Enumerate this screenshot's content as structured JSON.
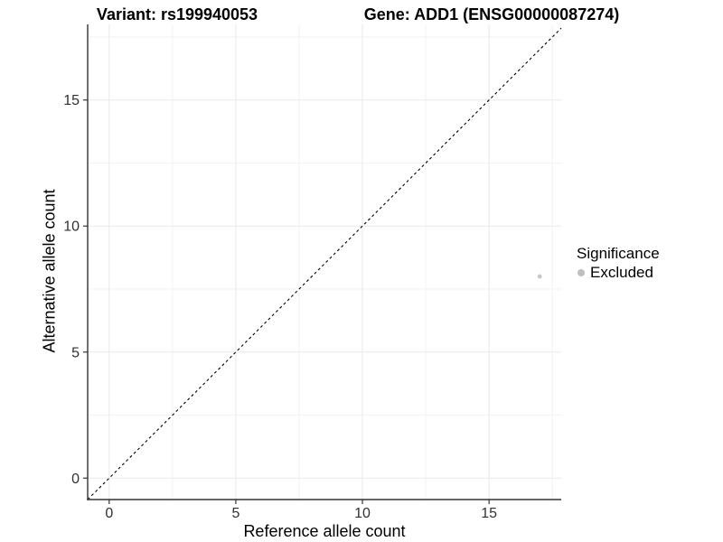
{
  "chart_data": {
    "type": "scatter",
    "title_left": "Variant: rs199940053",
    "title_right": "Gene: ADD1 (ENSG00000087274)",
    "xlabel": "Reference allele count",
    "ylabel": "Alternative allele count",
    "xlim": [
      -0.85,
      17.85
    ],
    "ylim": [
      -0.85,
      18.0
    ],
    "x_ticks": [
      0,
      5,
      10,
      15
    ],
    "y_ticks": [
      0,
      5,
      10,
      15
    ],
    "minor_grid_step": 2.5,
    "grid": true,
    "points": [
      {
        "x": 17,
        "y": 8,
        "series": "Excluded"
      }
    ],
    "reference_line": {
      "kind": "identity y=x",
      "style": "dashed",
      "color": "#000000"
    },
    "legend": {
      "title": "Significance",
      "position": "right",
      "items": [
        {
          "label": "Excluded",
          "color": "#bebebe"
        }
      ]
    },
    "colors": {
      "point": "#c8c8c8",
      "axis_line": "#333333",
      "tick_mark": "#333333",
      "tick_label": "#303030",
      "grid_major": "#e8e8e8",
      "grid_minor": "#f2f2f2",
      "background": "#ffffff"
    }
  }
}
